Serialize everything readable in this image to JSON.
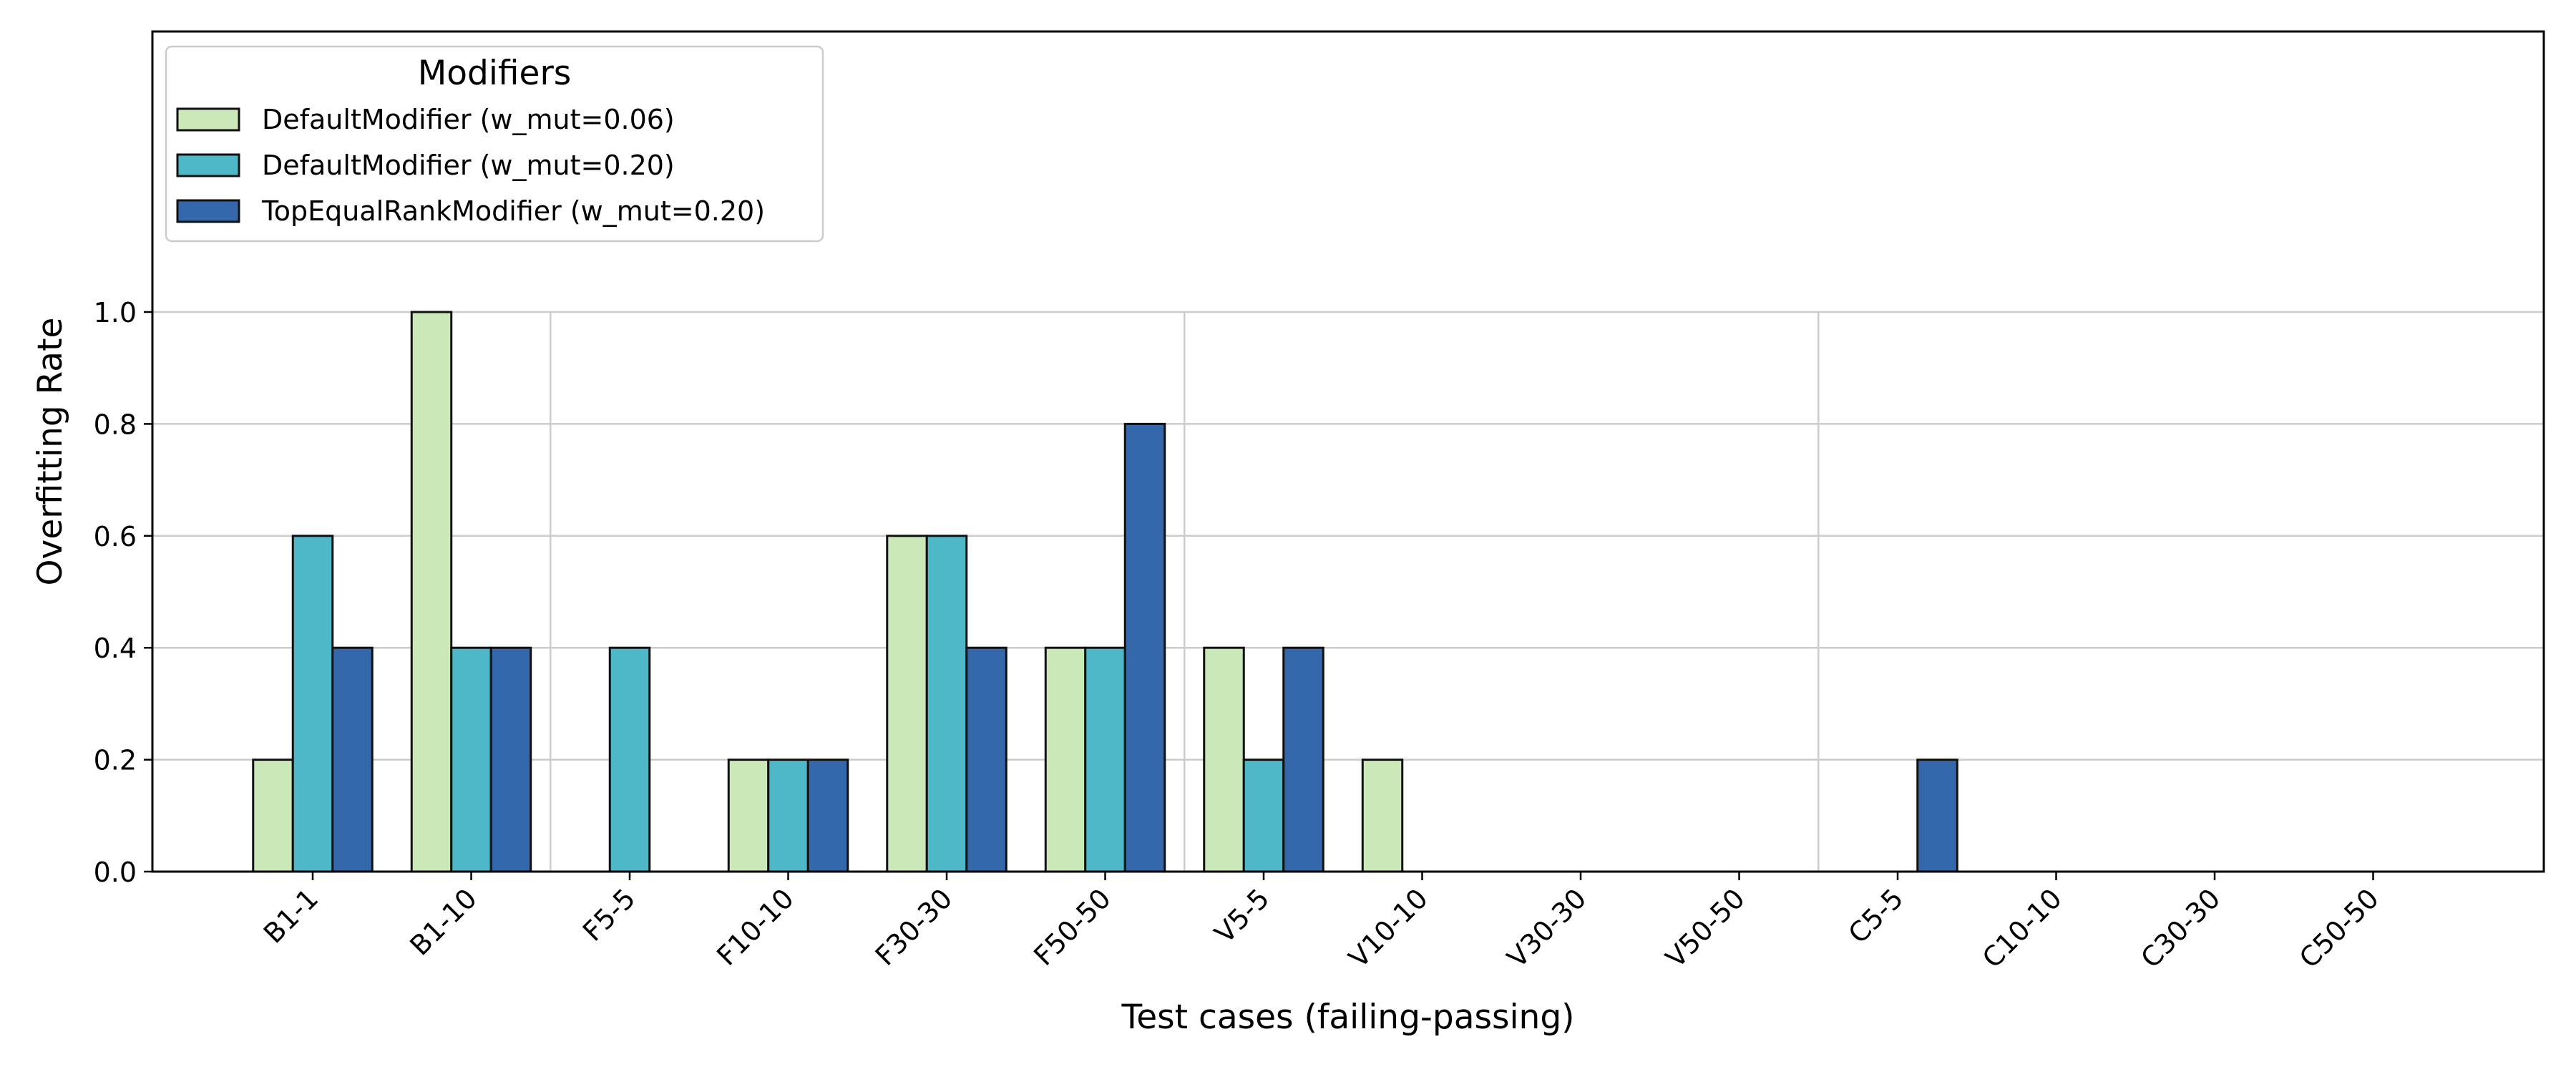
{
  "chart_data": {
    "type": "bar",
    "title": "",
    "xlabel": "Test cases (failing-passing)",
    "ylabel": "Overfitting Rate",
    "ylim": [
      0,
      1.5
    ],
    "yticks": [
      "0.0",
      "0.2",
      "0.4",
      "0.6",
      "0.8",
      "1.0"
    ],
    "ytick_values": [
      0,
      0.2,
      0.4,
      0.6,
      0.8,
      1.0
    ],
    "grid": true,
    "group_separators_after": [
      "F50-50",
      "V50-50"
    ],
    "categories": [
      "B1-1",
      "B1-10",
      "F5-5",
      "F10-10",
      "F30-30",
      "F50-50",
      "V5-5",
      "V10-10",
      "V30-30",
      "V50-50",
      "C5-5",
      "C10-10",
      "C30-30",
      "C50-50"
    ],
    "series": [
      {
        "name": "DefaultModifier (w_mut=0.06)",
        "color": "#cbe8b9",
        "values": [
          0.2,
          1.0,
          0.0,
          0.2,
          0.6,
          0.4,
          0.4,
          0.2,
          0.0,
          0.0,
          0.0,
          0.0,
          0.0,
          0.0
        ]
      },
      {
        "name": "DefaultModifier (w_mut=0.20)",
        "color": "#4fb8c8",
        "values": [
          0.6,
          0.4,
          0.4,
          0.2,
          0.6,
          0.4,
          0.2,
          0.0,
          0.0,
          0.0,
          0.0,
          0.0,
          0.0,
          0.0
        ]
      },
      {
        "name": "TopEqualRankModifier (w_mut=0.20)",
        "color": "#3468ab",
        "values": [
          0.4,
          0.4,
          0.0,
          0.2,
          0.4,
          0.8,
          0.4,
          0.0,
          0.0,
          0.0,
          0.2,
          0.0,
          0.0,
          0.0
        ]
      }
    ],
    "legend": {
      "title": "Modifiers",
      "placement": "top-left"
    }
  }
}
